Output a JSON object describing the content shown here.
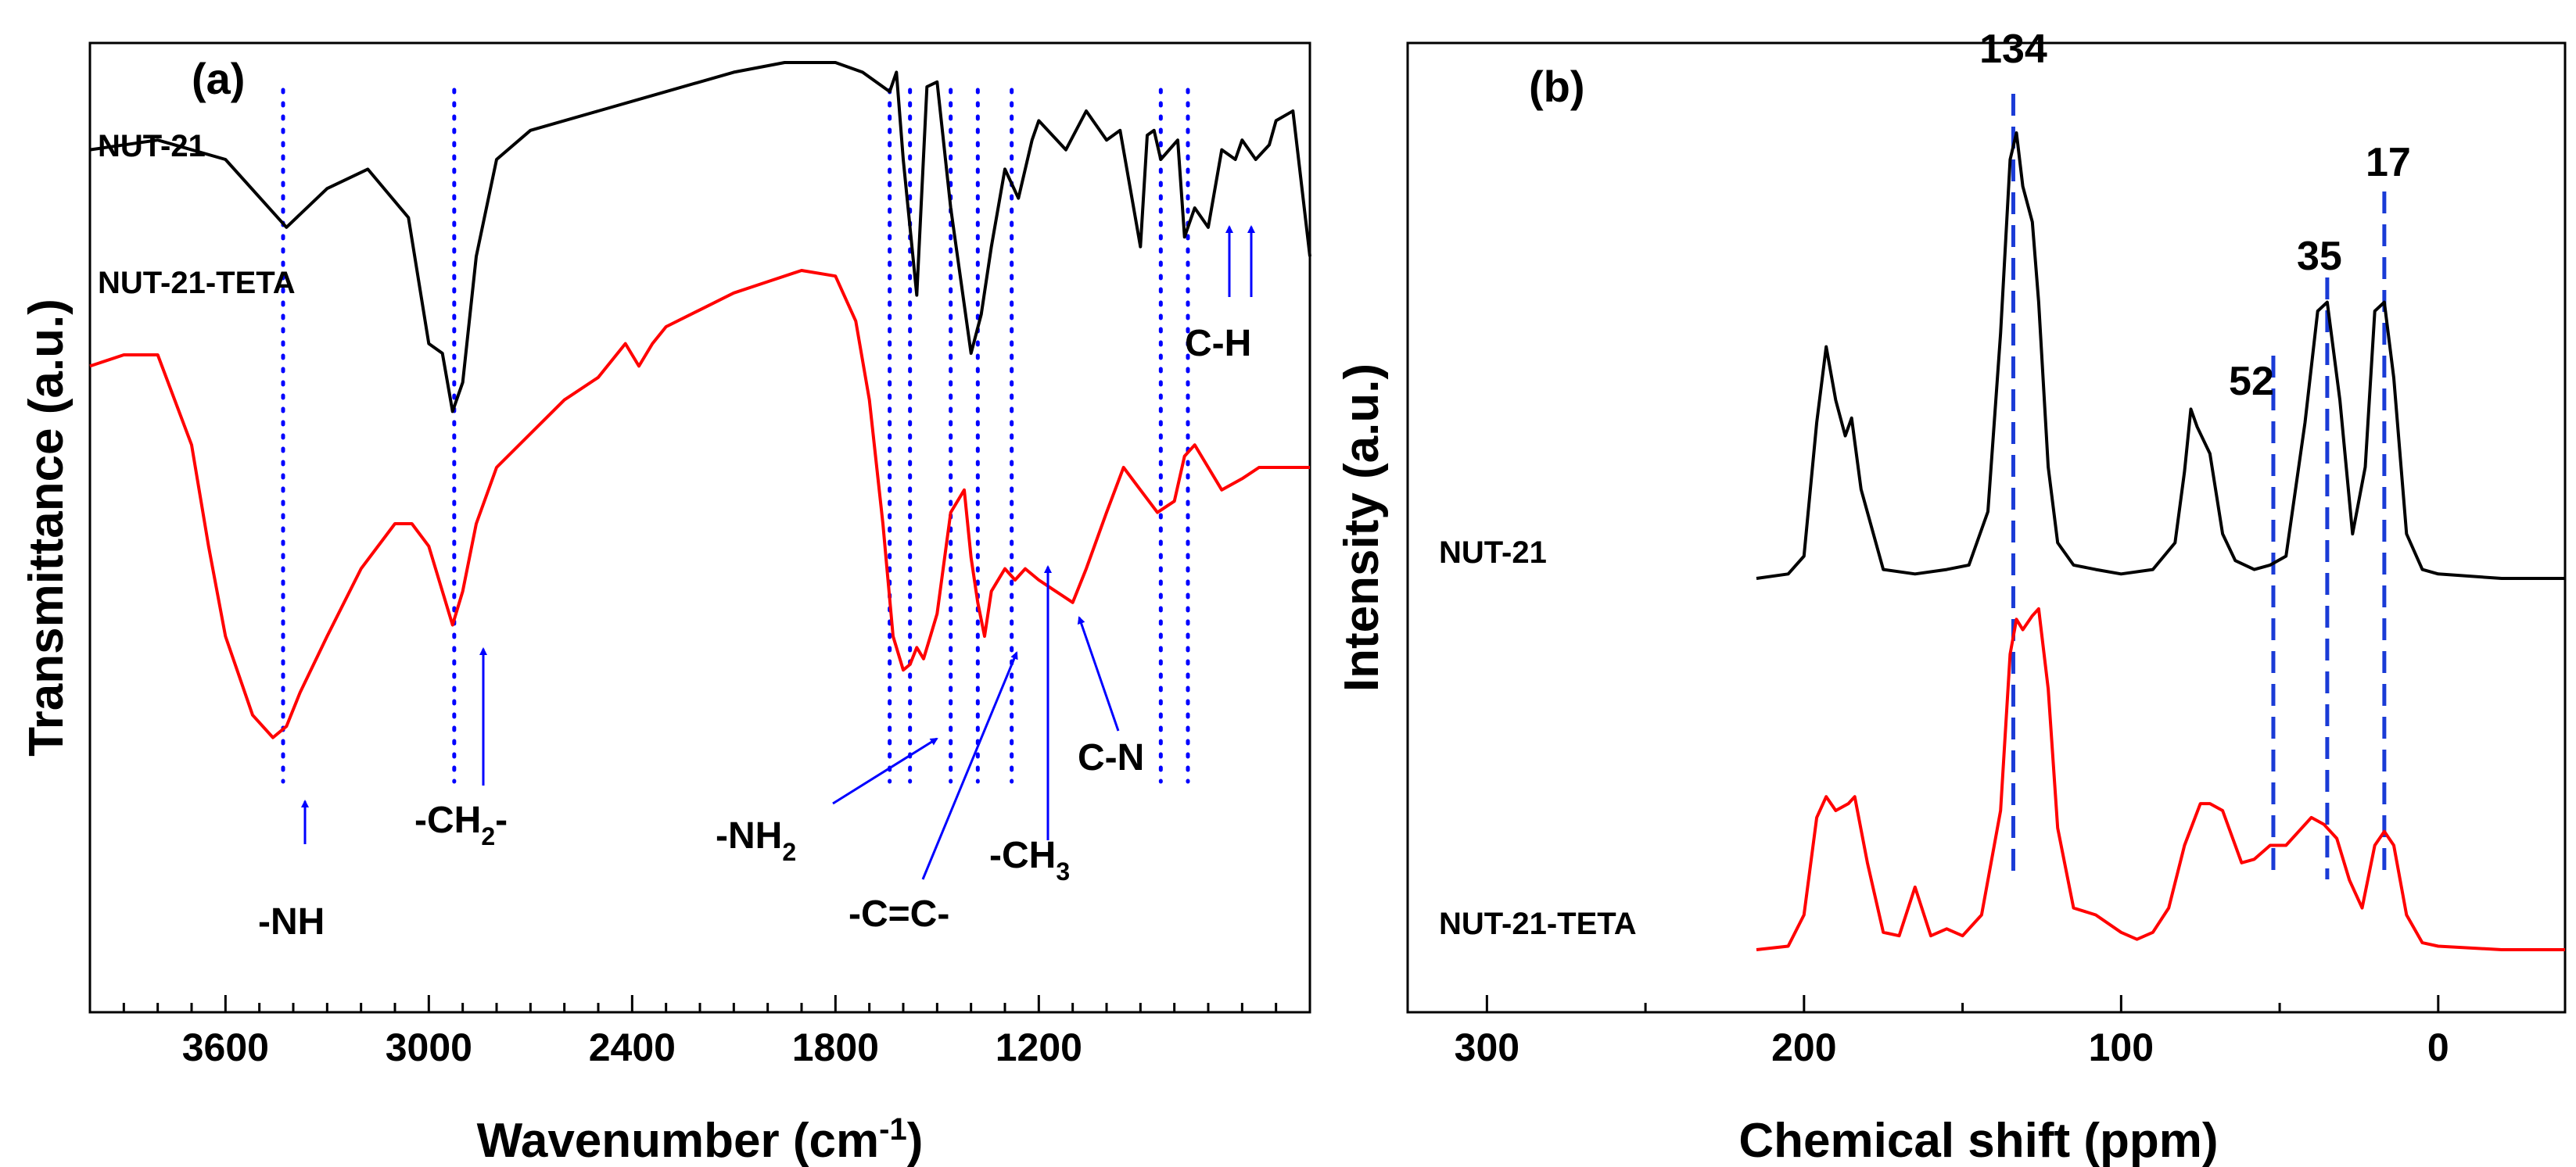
{
  "colors": {
    "black_trace": "#000000",
    "red_trace": "#ff0000",
    "guide_blue": "#0000ff",
    "dash_blue": "#1a3bd6"
  },
  "chart_data": [
    {
      "type": "line",
      "panel": "(a)",
      "title": "",
      "xlabel": "Wavenumber (cm",
      "xlabel_sup": "-1",
      "xlabel_end": ")",
      "ylabel": "Transmittance (a.u.)",
      "xlim": [
        4000,
        400
      ],
      "x_reversed": true,
      "x_ticks": [
        3600,
        3000,
        2400,
        1800,
        1200
      ],
      "y_ticks": [],
      "legend": "inline labels, top-left",
      "series": [
        {
          "name": "NUT-21",
          "color": "#000000",
          "x": [
            4000,
            3800,
            3600,
            3420,
            3300,
            3180,
            3060,
            3000,
            2960,
            2930,
            2900,
            2860,
            2800,
            2700,
            2500,
            2300,
            2100,
            1950,
            1800,
            1720,
            1640,
            1620,
            1600,
            1560,
            1530,
            1500,
            1460,
            1430,
            1400,
            1370,
            1340,
            1300,
            1260,
            1220,
            1200,
            1120,
            1060,
            1000,
            960,
            900,
            880,
            860,
            840,
            790,
            770,
            740,
            700,
            660,
            620,
            600,
            560,
            520,
            500,
            450,
            400
          ],
          "y": [
            0.82,
            0.84,
            0.8,
            0.66,
            0.74,
            0.78,
            0.68,
            0.42,
            0.4,
            0.28,
            0.34,
            0.6,
            0.8,
            0.86,
            0.9,
            0.94,
            0.98,
            1.0,
            1.0,
            0.98,
            0.94,
            0.98,
            0.8,
            0.52,
            0.95,
            0.96,
            0.7,
            0.55,
            0.4,
            0.48,
            0.62,
            0.78,
            0.72,
            0.84,
            0.88,
            0.82,
            0.9,
            0.84,
            0.86,
            0.62,
            0.85,
            0.86,
            0.8,
            0.84,
            0.64,
            0.7,
            0.66,
            0.82,
            0.8,
            0.84,
            0.8,
            0.83,
            0.88,
            0.9,
            0.6
          ]
        },
        {
          "name": "NUT-21-TETA",
          "color": "#ff0000",
          "x": [
            4000,
            3900,
            3800,
            3700,
            3650,
            3600,
            3520,
            3460,
            3420,
            3380,
            3300,
            3200,
            3100,
            3050,
            3000,
            2960,
            2930,
            2900,
            2860,
            2800,
            2700,
            2600,
            2500,
            2420,
            2380,
            2340,
            2300,
            2200,
            2100,
            2000,
            1900,
            1800,
            1740,
            1700,
            1660,
            1630,
            1600,
            1580,
            1560,
            1540,
            1520,
            1500,
            1460,
            1420,
            1400,
            1380,
            1360,
            1340,
            1300,
            1270,
            1240,
            1200,
            1150,
            1100,
            1060,
            1000,
            950,
            900,
            850,
            800,
            770,
            740,
            700,
            660,
            600,
            550,
            500,
            450,
            400
          ],
          "y": [
            0.78,
            0.8,
            0.8,
            0.64,
            0.46,
            0.3,
            0.16,
            0.12,
            0.14,
            0.2,
            0.3,
            0.42,
            0.5,
            0.5,
            0.46,
            0.38,
            0.32,
            0.38,
            0.5,
            0.6,
            0.66,
            0.72,
            0.76,
            0.82,
            0.78,
            0.82,
            0.85,
            0.88,
            0.91,
            0.93,
            0.95,
            0.94,
            0.86,
            0.72,
            0.5,
            0.3,
            0.24,
            0.25,
            0.28,
            0.26,
            0.3,
            0.34,
            0.52,
            0.56,
            0.44,
            0.36,
            0.3,
            0.38,
            0.42,
            0.4,
            0.42,
            0.4,
            0.38,
            0.36,
            0.42,
            0.52,
            0.6,
            0.56,
            0.52,
            0.54,
            0.62,
            0.64,
            0.6,
            0.56,
            0.58,
            0.6,
            0.6,
            0.6,
            0.6
          ]
        }
      ],
      "trace_labels": [
        "NUT-21",
        "NUT-21-TETA"
      ],
      "annotations": [
        {
          "label": "-NH",
          "x": 3430
        },
        {
          "label": "-CH",
          "sub": "2",
          "suffix": "-",
          "x": 2925
        },
        {
          "label": "-NH",
          "sub": "2",
          "x": 1560
        },
        {
          "label": "-C=C-",
          "x": 1500
        },
        {
          "label": "-CH",
          "sub": "3",
          "x": 1380
        },
        {
          "label": "C-N",
          "x": 1325
        },
        {
          "label": "C-H",
          "x": 770
        }
      ],
      "guide_lines_x": [
        3430,
        2925,
        1640,
        1580,
        1460,
        1380,
        1280,
        840,
        760
      ]
    },
    {
      "type": "line",
      "panel": "(b)",
      "title": "",
      "xlabel": "Chemical shift (ppm)",
      "ylabel": "Intensity (a.u.)",
      "xlim": [
        325,
        -40
      ],
      "x_reversed": true,
      "x_ticks": [
        300,
        200,
        100,
        0
      ],
      "y_ticks": [],
      "legend": "inline labels, bottom-left",
      "series": [
        {
          "name": "NUT-21",
          "color": "#000000",
          "x": [
            215,
            205,
            200,
            196,
            193,
            190,
            187,
            185,
            182,
            175,
            165,
            155,
            148,
            142,
            138,
            135,
            133,
            131,
            128,
            126,
            123,
            120,
            115,
            108,
            100,
            90,
            83,
            80,
            78,
            76,
            72,
            68,
            64,
            58,
            53,
            48,
            42,
            38,
            35,
            31,
            27,
            23,
            20,
            17,
            14,
            10,
            5,
            0,
            -20,
            -40
          ],
          "y": [
            0,
            0.01,
            0.05,
            0.35,
            0.52,
            0.4,
            0.32,
            0.36,
            0.2,
            0.02,
            0.01,
            0.02,
            0.03,
            0.15,
            0.55,
            0.94,
            1.0,
            0.88,
            0.8,
            0.62,
            0.25,
            0.08,
            0.03,
            0.02,
            0.01,
            0.02,
            0.08,
            0.24,
            0.38,
            0.34,
            0.28,
            0.1,
            0.04,
            0.02,
            0.03,
            0.05,
            0.35,
            0.6,
            0.62,
            0.4,
            0.1,
            0.25,
            0.6,
            0.62,
            0.45,
            0.1,
            0.02,
            0.01,
            0.0,
            0.0
          ]
        },
        {
          "name": "NUT-21-TETA",
          "color": "#ff0000",
          "x": [
            215,
            205,
            200,
            196,
            193,
            190,
            186,
            184,
            180,
            175,
            170,
            165,
            160,
            155,
            150,
            144,
            138,
            135,
            133,
            131,
            128,
            126,
            123,
            120,
            115,
            108,
            100,
            95,
            90,
            85,
            80,
            75,
            72,
            68,
            62,
            58,
            53,
            48,
            44,
            40,
            36,
            32,
            28,
            24,
            20,
            17,
            14,
            10,
            5,
            0,
            -20,
            -40
          ],
          "y": [
            0,
            0.01,
            0.1,
            0.38,
            0.44,
            0.4,
            0.42,
            0.44,
            0.25,
            0.05,
            0.04,
            0.18,
            0.04,
            0.06,
            0.04,
            0.1,
            0.4,
            0.85,
            0.95,
            0.92,
            0.96,
            0.98,
            0.75,
            0.35,
            0.12,
            0.1,
            0.05,
            0.03,
            0.05,
            0.12,
            0.3,
            0.42,
            0.42,
            0.4,
            0.25,
            0.26,
            0.3,
            0.3,
            0.34,
            0.38,
            0.36,
            0.32,
            0.2,
            0.12,
            0.3,
            0.34,
            0.3,
            0.1,
            0.02,
            0.01,
            0.0,
            0.0
          ]
        }
      ],
      "trace_labels": [
        "NUT-21",
        "NUT-21-TETA"
      ],
      "peak_labels": [
        {
          "label": "134",
          "x": 134
        },
        {
          "label": "52",
          "x": 52
        },
        {
          "label": "35",
          "x": 35
        },
        {
          "label": "17",
          "x": 17
        }
      ]
    }
  ]
}
